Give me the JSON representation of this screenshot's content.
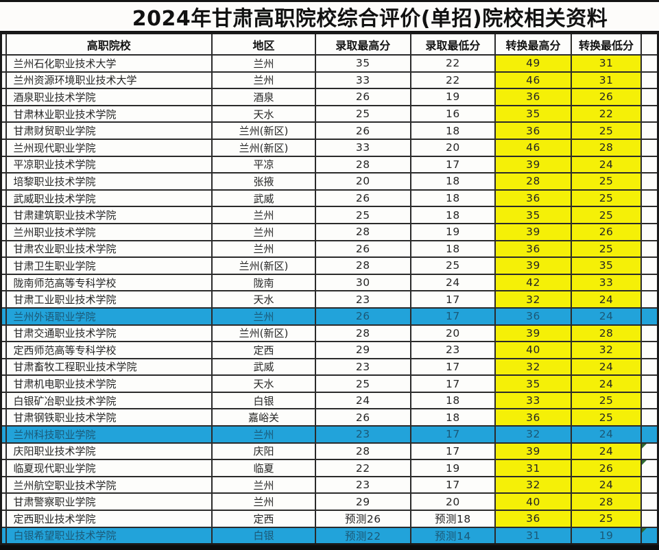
{
  "title": "2024年甘肃高职院校综合评价(单招)院校相关资料",
  "colors": {
    "highlight_yellow": "#f5f007",
    "highlight_blue": "#22a3da",
    "highlight_row_text": "#1b5876"
  },
  "table": {
    "columns": [
      "高职院校",
      "地区",
      "录取最高分",
      "录取最低分",
      "转换最高分",
      "转换最低分"
    ],
    "rows": [
      {
        "school": "兰州石化职业技术大学",
        "region": "兰州",
        "adm_max": "35",
        "adm_min": "22",
        "conv_max": "49",
        "conv_min": "31",
        "highlight": false,
        "corner_mark": false
      },
      {
        "school": "兰州资源环境职业技术大学",
        "region": "兰州",
        "adm_max": "33",
        "adm_min": "22",
        "conv_max": "46",
        "conv_min": "31",
        "highlight": false,
        "corner_mark": false
      },
      {
        "school": "酒泉职业技术学院",
        "region": "酒泉",
        "adm_max": "26",
        "adm_min": "19",
        "conv_max": "36",
        "conv_min": "26",
        "highlight": false,
        "corner_mark": false
      },
      {
        "school": "甘肃林业职业技术学院",
        "region": "天水",
        "adm_max": "25",
        "adm_min": "16",
        "conv_max": "35",
        "conv_min": "22",
        "highlight": false,
        "corner_mark": false
      },
      {
        "school": "甘肃财贸职业学院",
        "region": "兰州(新区)",
        "adm_max": "26",
        "adm_min": "18",
        "conv_max": "36",
        "conv_min": "25",
        "highlight": false,
        "corner_mark": false
      },
      {
        "school": "兰州现代职业学院",
        "region": "兰州(新区)",
        "adm_max": "33",
        "adm_min": "20",
        "conv_max": "46",
        "conv_min": "28",
        "highlight": false,
        "corner_mark": false
      },
      {
        "school": "平凉职业技术学院",
        "region": "平凉",
        "adm_max": "28",
        "adm_min": "17",
        "conv_max": "39",
        "conv_min": "24",
        "highlight": false,
        "corner_mark": false
      },
      {
        "school": "培黎职业技术学院",
        "region": "张掖",
        "adm_max": "20",
        "adm_min": "18",
        "conv_max": "28",
        "conv_min": "25",
        "highlight": false,
        "corner_mark": false
      },
      {
        "school": "武威职业技术学院",
        "region": "武威",
        "adm_max": "26",
        "adm_min": "18",
        "conv_max": "36",
        "conv_min": "25",
        "highlight": false,
        "corner_mark": false
      },
      {
        "school": "甘肃建筑职业技术学院",
        "region": "兰州",
        "adm_max": "25",
        "adm_min": "18",
        "conv_max": "35",
        "conv_min": "25",
        "highlight": false,
        "corner_mark": false
      },
      {
        "school": "兰州职业技术学院",
        "region": "兰州",
        "adm_max": "28",
        "adm_min": "19",
        "conv_max": "39",
        "conv_min": "26",
        "highlight": false,
        "corner_mark": false
      },
      {
        "school": "甘肃农业职业技术学院",
        "region": "兰州",
        "adm_max": "26",
        "adm_min": "18",
        "conv_max": "36",
        "conv_min": "25",
        "highlight": false,
        "corner_mark": false
      },
      {
        "school": "甘肃卫生职业学院",
        "region": "兰州(新区)",
        "adm_max": "28",
        "adm_min": "25",
        "conv_max": "39",
        "conv_min": "35",
        "highlight": false,
        "corner_mark": false
      },
      {
        "school": "陇南师范高等专科学校",
        "region": "陇南",
        "adm_max": "30",
        "adm_min": "24",
        "conv_max": "42",
        "conv_min": "33",
        "highlight": false,
        "corner_mark": false
      },
      {
        "school": "甘肃工业职业技术学院",
        "region": "天水",
        "adm_max": "23",
        "adm_min": "17",
        "conv_max": "32",
        "conv_min": "24",
        "highlight": false,
        "corner_mark": false
      },
      {
        "school": "兰州外语职业学院",
        "region": "兰州",
        "adm_max": "26",
        "adm_min": "17",
        "conv_max": "36",
        "conv_min": "24",
        "highlight": true,
        "corner_mark": false
      },
      {
        "school": "甘肃交通职业技术学院",
        "region": "兰州(新区)",
        "adm_max": "28",
        "adm_min": "20",
        "conv_max": "39",
        "conv_min": "28",
        "highlight": false,
        "corner_mark": false
      },
      {
        "school": "定西师范高等专科学校",
        "region": "定西",
        "adm_max": "29",
        "adm_min": "23",
        "conv_max": "40",
        "conv_min": "32",
        "highlight": false,
        "corner_mark": false
      },
      {
        "school": "甘肃畜牧工程职业技术学院",
        "region": "武威",
        "adm_max": "23",
        "adm_min": "17",
        "conv_max": "32",
        "conv_min": "24",
        "highlight": false,
        "corner_mark": false
      },
      {
        "school": "甘肃机电职业技术学院",
        "region": "天水",
        "adm_max": "25",
        "adm_min": "17",
        "conv_max": "35",
        "conv_min": "24",
        "highlight": false,
        "corner_mark": false
      },
      {
        "school": "白银矿冶职业技术学院",
        "region": "白银",
        "adm_max": "24",
        "adm_min": "18",
        "conv_max": "33",
        "conv_min": "25",
        "highlight": false,
        "corner_mark": false
      },
      {
        "school": "甘肃钢铁职业技术学院",
        "region": "嘉峪关",
        "adm_max": "26",
        "adm_min": "18",
        "conv_max": "36",
        "conv_min": "25",
        "highlight": false,
        "corner_mark": false
      },
      {
        "school": "兰州科技职业学院",
        "region": "兰州",
        "adm_max": "23",
        "adm_min": "17",
        "conv_max": "32",
        "conv_min": "24",
        "highlight": true,
        "corner_mark": false
      },
      {
        "school": "庆阳职业技术学院",
        "region": "庆阳",
        "adm_max": "28",
        "adm_min": "17",
        "conv_max": "39",
        "conv_min": "24",
        "highlight": false,
        "corner_mark": true
      },
      {
        "school": "临夏现代职业学院",
        "region": "临夏",
        "adm_max": "22",
        "adm_min": "19",
        "conv_max": "31",
        "conv_min": "26",
        "highlight": false,
        "corner_mark": true
      },
      {
        "school": "兰州航空职业技术学院",
        "region": "兰州",
        "adm_max": "23",
        "adm_min": "17",
        "conv_max": "32",
        "conv_min": "24",
        "highlight": false,
        "corner_mark": false
      },
      {
        "school": "甘肃警察职业学院",
        "region": "兰州",
        "adm_max": "29",
        "adm_min": "20",
        "conv_max": "40",
        "conv_min": "28",
        "highlight": false,
        "corner_mark": false
      },
      {
        "school": "定西职业技术学院",
        "region": "定西",
        "adm_max": "预测26",
        "adm_min": "预测18",
        "conv_max": "36",
        "conv_min": "25",
        "highlight": false,
        "corner_mark": false
      },
      {
        "school": "白银希望职业技术学院",
        "region": "白银",
        "adm_max": "预测22",
        "adm_min": "预测14",
        "conv_max": "31",
        "conv_min": "19",
        "highlight": true,
        "corner_mark": true
      }
    ]
  }
}
